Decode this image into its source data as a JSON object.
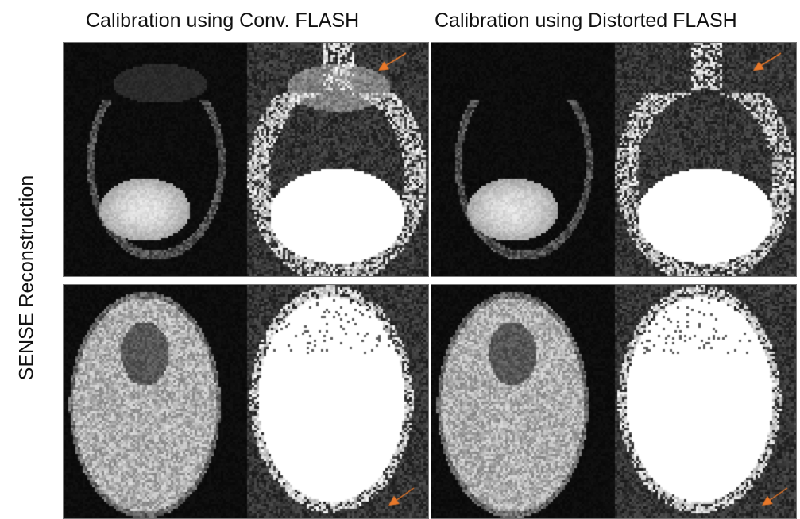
{
  "figure": {
    "column_titles": [
      "Calibration using Conv. FLASH",
      "Calibration using Distorted FLASH"
    ],
    "row_label": "SENSE Reconstruction",
    "arrow_color": "#E8782A",
    "panels": [
      {
        "row": "top",
        "column": "Calibration using Conv. FLASH",
        "arrow": "upper-right"
      },
      {
        "row": "top",
        "column": "Calibration using Distorted FLASH",
        "arrow": "upper-right"
      },
      {
        "row": "bottom",
        "column": "Calibration using Conv. FLASH",
        "arrow": "lower-right"
      },
      {
        "row": "bottom",
        "column": "Calibration using Distorted FLASH",
        "arrow": "lower-right"
      }
    ]
  }
}
